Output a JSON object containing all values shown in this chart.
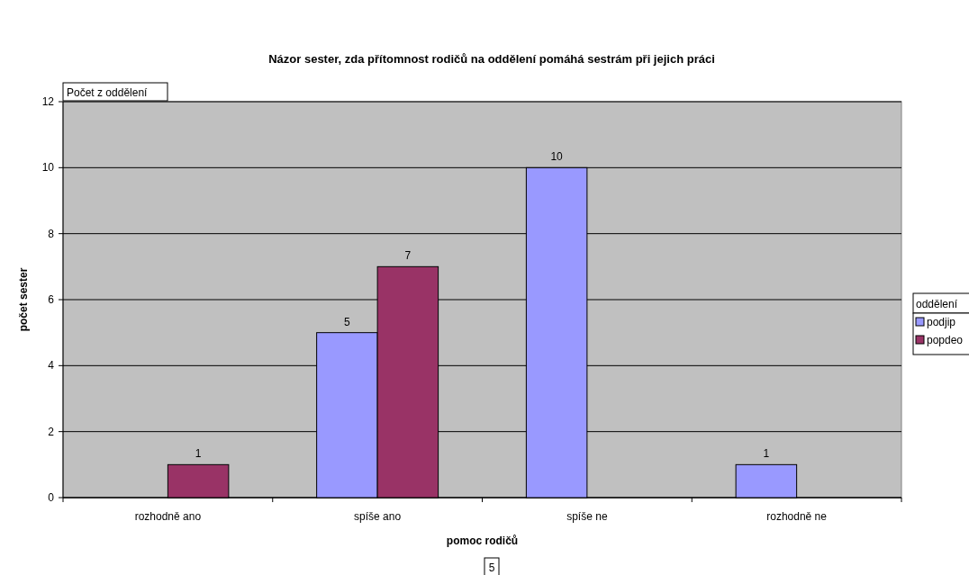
{
  "chart_data": {
    "type": "bar",
    "title": "Názor sester, zda přítomnost rodičů na oddělení pomáhá sestrám při jejich práci",
    "xlabel": "pomoc rodičů",
    "ylabel": "počet sester",
    "legend_title": "oddělení",
    "categories": [
      "rozhodně ano",
      "spíše ano",
      "spíše ne",
      "rozhodně ne"
    ],
    "series": [
      {
        "name": "podjip",
        "color": "#9999ff",
        "values": [
          null,
          5,
          10,
          1
        ]
      },
      {
        "name": "popdeo",
        "color": "#993366",
        "values": [
          1,
          7,
          null,
          null
        ]
      }
    ],
    "ylim": [
      0,
      12
    ],
    "yticks": [
      0,
      2,
      4,
      6,
      8,
      10,
      12
    ],
    "grid": "y",
    "legend": "right",
    "data_labels": true,
    "annotations": [
      "Počet z oddělení",
      "5"
    ]
  }
}
